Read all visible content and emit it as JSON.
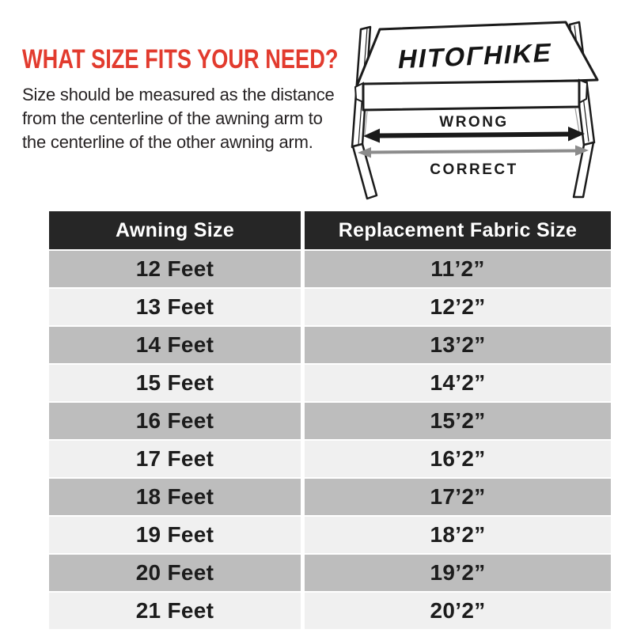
{
  "intro": {
    "title": "WHAT SIZE FITS YOUR NEED?",
    "description_lines": [
      "Size should be measured as the distance",
      "from the centerline of the awning arm to",
      "the centerline of the other awning arm."
    ]
  },
  "diagram": {
    "brand_logo": "HITOΓHIKE",
    "wrong_label": "WRONG",
    "correct_label": "CORRECT"
  },
  "chart_data": {
    "type": "table",
    "columns": [
      "Awning Size",
      "Replacement Fabric Size"
    ],
    "rows": [
      [
        "12 Feet",
        "11’2”"
      ],
      [
        "13 Feet",
        "12’2”"
      ],
      [
        "14 Feet",
        "13’2”"
      ],
      [
        "15 Feet",
        "14’2”"
      ],
      [
        "16 Feet",
        "15’2”"
      ],
      [
        "17 Feet",
        "16’2”"
      ],
      [
        "18 Feet",
        "17’2”"
      ],
      [
        "19 Feet",
        "18’2”"
      ],
      [
        "20 Feet",
        "19’2”"
      ],
      [
        "21 Feet",
        "20’2”"
      ]
    ]
  },
  "colors": {
    "accent_red": "#e23b2e",
    "table_header_bg": "#262626",
    "table_header_text": "#ffffff",
    "row_gray": "#bdbdbd",
    "row_light": "#f0f0f0",
    "cell_text": "#1c1c1c",
    "arrow_black": "#1a1a1a",
    "arrow_gray": "#8c8c8c"
  }
}
